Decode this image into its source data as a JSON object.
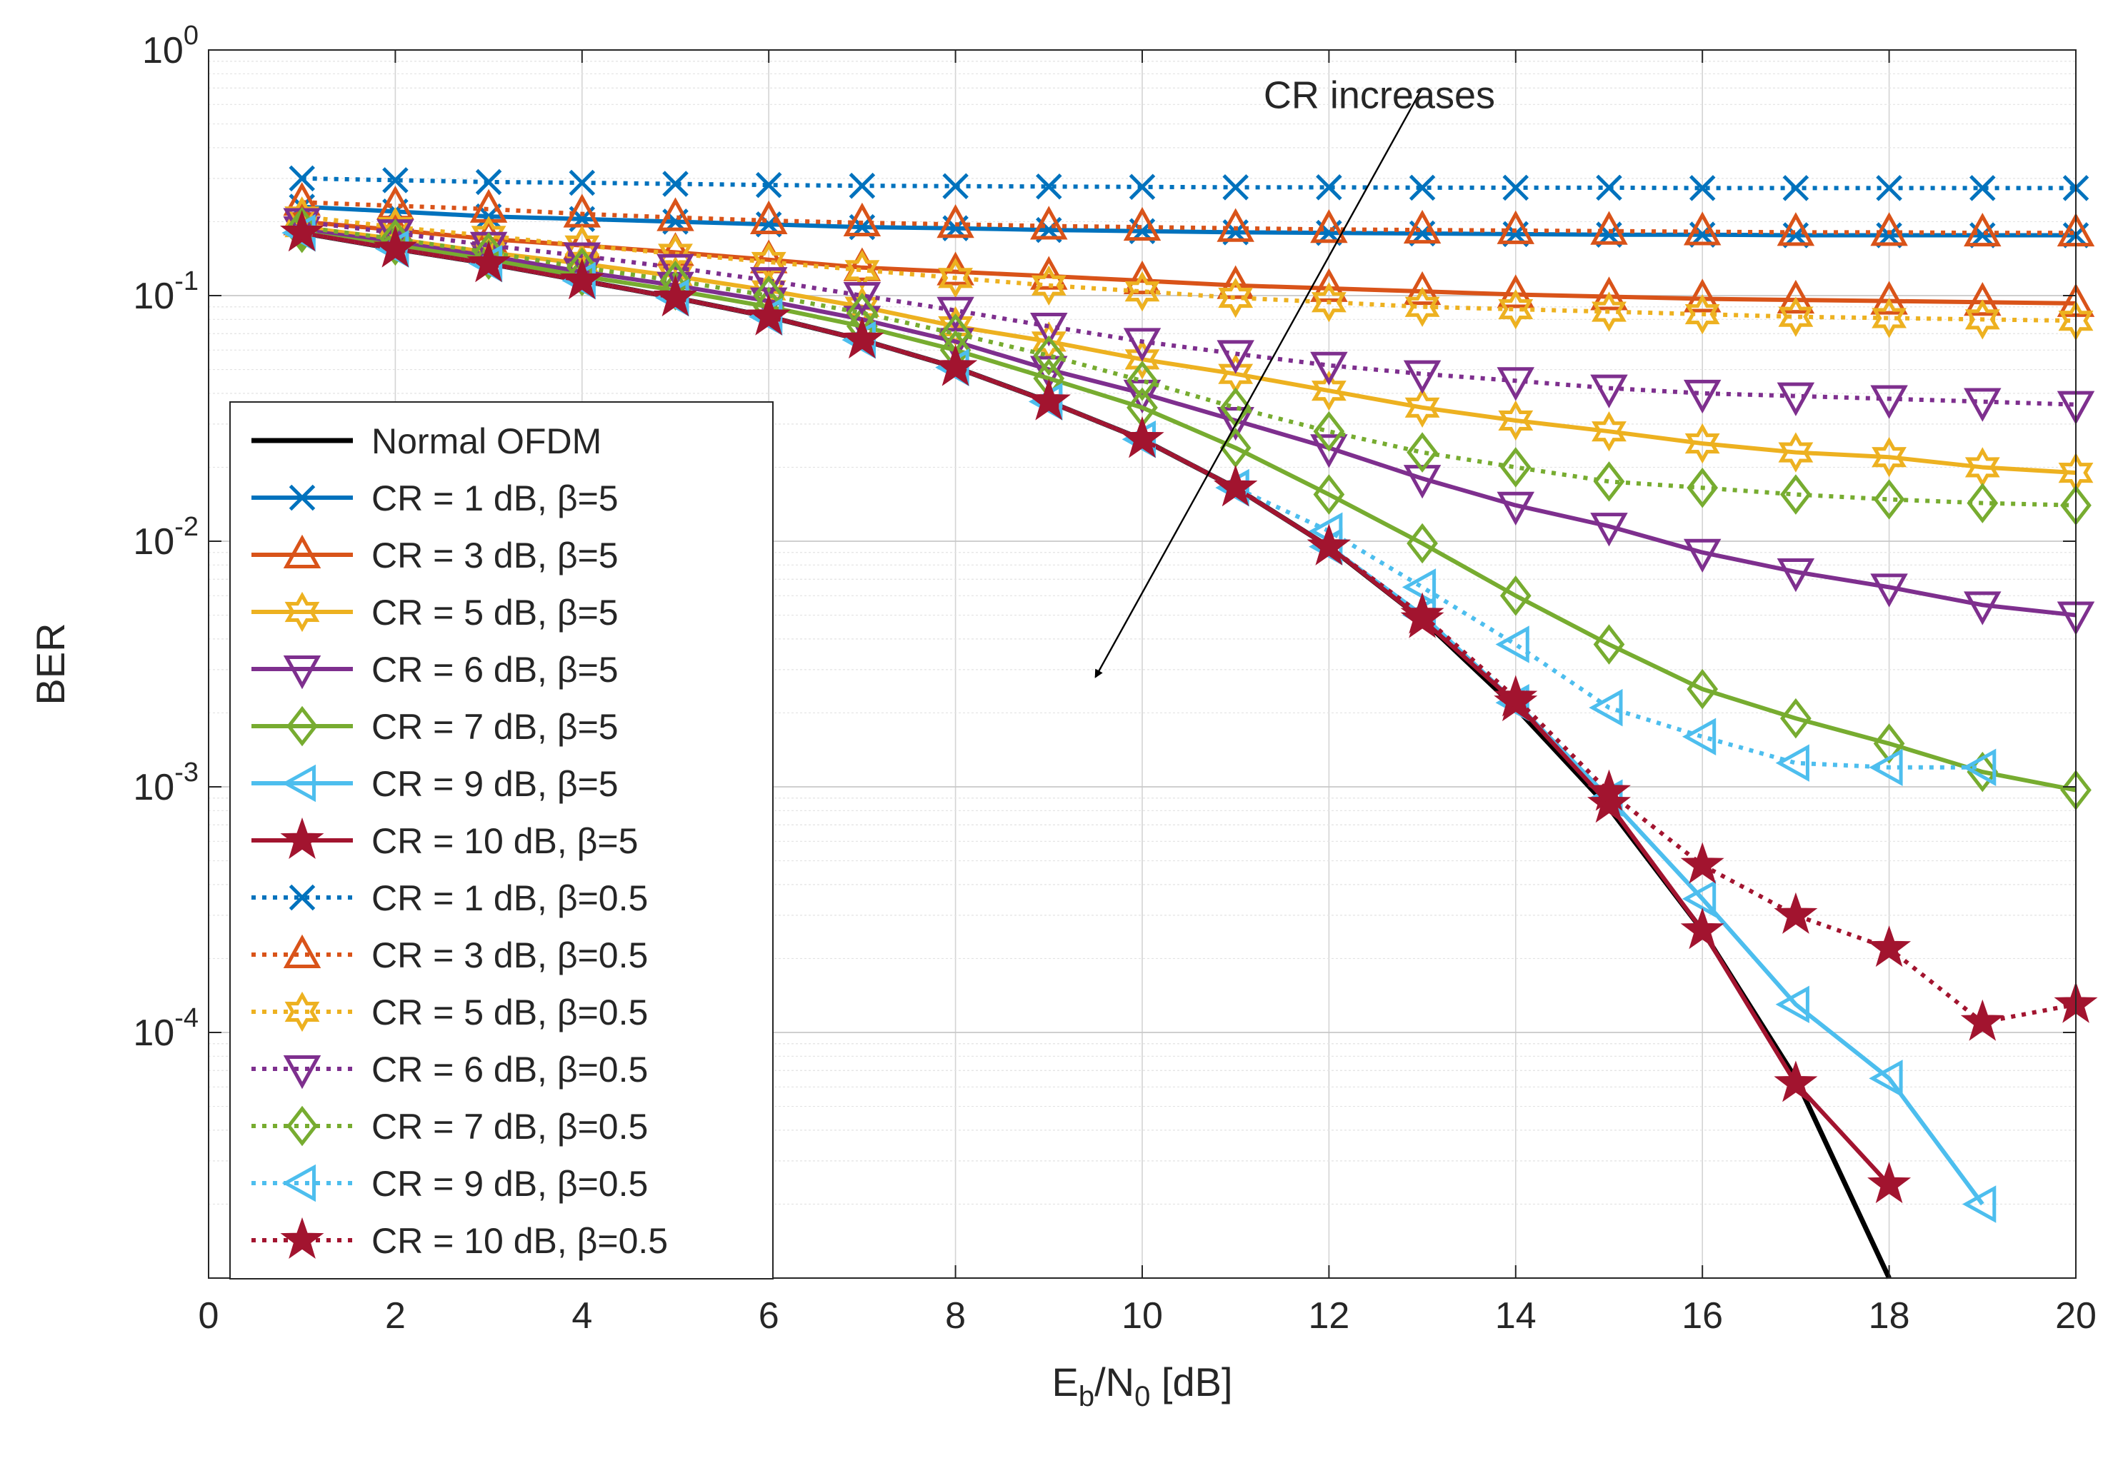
{
  "chart_data": {
    "type": "line",
    "title": "",
    "xlabel": "E_b/N_0 [dB]",
    "xlabel_parts": {
      "main1": "E",
      "sub1": "b",
      "main2": "/N",
      "sub2": "0",
      "tail": " [dB]"
    },
    "ylabel": "BER",
    "xlim": [
      0,
      20
    ],
    "ylim": [
      1e-05,
      1
    ],
    "yscale": "log",
    "grid": true,
    "legend_position": "lower-left",
    "x_ticks": [
      "0",
      "2",
      "4",
      "6",
      "8",
      "10",
      "12",
      "14",
      "16",
      "18",
      "20"
    ],
    "y_ticks": [
      {
        "base": "10",
        "exp": "0"
      },
      {
        "base": "10",
        "exp": "-1"
      },
      {
        "base": "10",
        "exp": "-2"
      },
      {
        "base": "10",
        "exp": "-3"
      },
      {
        "base": "10",
        "exp": "-4"
      }
    ],
    "annotation": {
      "text": "CR increases",
      "arrow_from": [
        13,
        0.7
      ],
      "arrow_to": [
        9.5,
        0.0028
      ]
    },
    "series": [
      {
        "name": "Normal OFDM",
        "color": "#000000",
        "line": "solid",
        "marker": "none",
        "x": [
          1,
          2,
          3,
          4,
          5,
          6,
          7,
          8,
          9,
          10,
          11,
          12,
          13,
          14,
          15,
          16,
          17,
          18
        ],
        "y": [
          0.18,
          0.155,
          0.135,
          0.115,
          0.098,
          0.082,
          0.066,
          0.051,
          0.037,
          0.026,
          0.0165,
          0.0095,
          0.0048,
          0.0021,
          0.00082,
          0.00026,
          6.5e-05,
          1e-05
        ]
      },
      {
        "name": "CR = 1 dB, β=5",
        "color": "#0072BD",
        "line": "solid",
        "marker": "x",
        "x": [
          1,
          2,
          3,
          4,
          5,
          6,
          7,
          8,
          9,
          10,
          11,
          12,
          13,
          14,
          15,
          16,
          17,
          18,
          19,
          20
        ],
        "y": [
          0.23,
          0.22,
          0.21,
          0.205,
          0.2,
          0.195,
          0.19,
          0.188,
          0.185,
          0.183,
          0.181,
          0.18,
          0.179,
          0.178,
          0.177,
          0.177,
          0.176,
          0.176,
          0.176,
          0.176
        ]
      },
      {
        "name": "CR = 3 dB, β=5",
        "color": "#D95319",
        "line": "solid",
        "marker": "triangle-up",
        "x": [
          1,
          2,
          3,
          4,
          5,
          6,
          7,
          8,
          9,
          10,
          11,
          12,
          13,
          14,
          15,
          16,
          17,
          18,
          19,
          20
        ],
        "y": [
          0.2,
          0.185,
          0.17,
          0.16,
          0.15,
          0.14,
          0.13,
          0.125,
          0.12,
          0.115,
          0.11,
          0.107,
          0.104,
          0.101,
          0.099,
          0.097,
          0.096,
          0.095,
          0.094,
          0.093
        ]
      },
      {
        "name": "CR = 5 dB, β=5",
        "color": "#EDB120",
        "line": "solid",
        "marker": "hexagram",
        "x": [
          1,
          2,
          3,
          4,
          5,
          6,
          7,
          8,
          9,
          10,
          11,
          12,
          13,
          14,
          15,
          16,
          17,
          18,
          19,
          20
        ],
        "y": [
          0.19,
          0.17,
          0.15,
          0.135,
          0.12,
          0.105,
          0.09,
          0.075,
          0.065,
          0.055,
          0.048,
          0.041,
          0.035,
          0.031,
          0.028,
          0.025,
          0.023,
          0.022,
          0.02,
          0.019
        ]
      },
      {
        "name": "CR = 6 dB, β=5",
        "color": "#7E2F8E",
        "line": "solid",
        "marker": "triangle-down",
        "x": [
          1,
          2,
          3,
          4,
          5,
          6,
          7,
          8,
          9,
          10,
          11,
          12,
          13,
          14,
          15,
          16,
          17,
          18,
          19,
          20
        ],
        "y": [
          0.185,
          0.165,
          0.145,
          0.125,
          0.11,
          0.095,
          0.08,
          0.065,
          0.05,
          0.04,
          0.031,
          0.024,
          0.018,
          0.014,
          0.0115,
          0.009,
          0.0075,
          0.0065,
          0.0055,
          0.005
        ]
      },
      {
        "name": "CR = 7 dB, β=5",
        "color": "#77AC30",
        "line": "solid",
        "marker": "diamond",
        "x": [
          1,
          2,
          3,
          4,
          5,
          6,
          7,
          8,
          9,
          10,
          11,
          12,
          13,
          14,
          15,
          16,
          17,
          18,
          19,
          20
        ],
        "y": [
          0.18,
          0.16,
          0.14,
          0.12,
          0.105,
          0.09,
          0.075,
          0.06,
          0.046,
          0.035,
          0.024,
          0.0155,
          0.0098,
          0.006,
          0.0038,
          0.0025,
          0.0019,
          0.0015,
          0.00115,
          0.00097
        ]
      },
      {
        "name": "CR = 9 dB, β=5",
        "color": "#4DBEEE",
        "line": "solid",
        "marker": "triangle-left",
        "x": [
          1,
          2,
          3,
          4,
          5,
          6,
          7,
          8,
          9,
          10,
          11,
          12,
          13,
          14,
          15,
          16,
          17,
          18,
          19
        ],
        "y": [
          0.18,
          0.155,
          0.135,
          0.115,
          0.098,
          0.082,
          0.066,
          0.051,
          0.037,
          0.026,
          0.0165,
          0.0095,
          0.005,
          0.0022,
          0.0009,
          0.00035,
          0.00013,
          6.5e-05,
          2e-05
        ]
      },
      {
        "name": "CR = 10 dB, β=5",
        "color": "#A2142F",
        "line": "solid",
        "marker": "pentagram",
        "x": [
          1,
          2,
          3,
          4,
          5,
          6,
          7,
          8,
          9,
          10,
          11,
          12,
          13,
          14,
          15,
          16,
          17,
          18
        ],
        "y": [
          0.18,
          0.155,
          0.135,
          0.115,
          0.098,
          0.082,
          0.066,
          0.051,
          0.037,
          0.026,
          0.0165,
          0.0095,
          0.0048,
          0.0022,
          0.00085,
          0.00026,
          6.2e-05,
          2.4e-05
        ]
      },
      {
        "name": "CR = 1 dB, β=0.5",
        "color": "#0072BD",
        "line": "dotted",
        "marker": "x",
        "x": [
          1,
          2,
          3,
          4,
          5,
          6,
          7,
          8,
          9,
          10,
          11,
          12,
          13,
          14,
          15,
          16,
          17,
          18,
          19,
          20
        ],
        "y": [
          0.3,
          0.295,
          0.29,
          0.288,
          0.285,
          0.282,
          0.28,
          0.279,
          0.278,
          0.277,
          0.276,
          0.276,
          0.275,
          0.275,
          0.275,
          0.274,
          0.274,
          0.274,
          0.274,
          0.274
        ]
      },
      {
        "name": "CR = 3 dB, β=0.5",
        "color": "#D95319",
        "line": "dotted",
        "marker": "triangle-up",
        "x": [
          1,
          2,
          3,
          4,
          5,
          6,
          7,
          8,
          9,
          10,
          11,
          12,
          13,
          14,
          15,
          16,
          17,
          18,
          19,
          20
        ],
        "y": [
          0.24,
          0.232,
          0.225,
          0.215,
          0.208,
          0.202,
          0.198,
          0.195,
          0.192,
          0.19,
          0.188,
          0.186,
          0.185,
          0.184,
          0.183,
          0.182,
          0.181,
          0.181,
          0.18,
          0.18
        ]
      },
      {
        "name": "CR = 5 dB, β=0.5",
        "color": "#EDB120",
        "line": "dotted",
        "marker": "hexagram",
        "x": [
          1,
          2,
          3,
          4,
          5,
          6,
          7,
          8,
          9,
          10,
          11,
          12,
          13,
          14,
          15,
          16,
          17,
          18,
          19,
          20
        ],
        "y": [
          0.21,
          0.19,
          0.175,
          0.16,
          0.148,
          0.137,
          0.127,
          0.118,
          0.11,
          0.104,
          0.098,
          0.094,
          0.09,
          0.088,
          0.086,
          0.084,
          0.082,
          0.081,
          0.08,
          0.079
        ]
      },
      {
        "name": "CR = 6 dB, β=0.5",
        "color": "#7E2F8E",
        "line": "dotted",
        "marker": "triangle-down",
        "x": [
          1,
          2,
          3,
          4,
          5,
          6,
          7,
          8,
          9,
          10,
          11,
          12,
          13,
          14,
          15,
          16,
          17,
          18,
          19,
          20
        ],
        "y": [
          0.2,
          0.18,
          0.16,
          0.145,
          0.13,
          0.115,
          0.1,
          0.087,
          0.075,
          0.065,
          0.058,
          0.052,
          0.048,
          0.045,
          0.042,
          0.04,
          0.039,
          0.038,
          0.037,
          0.036
        ]
      },
      {
        "name": "CR = 7 dB, β=0.5",
        "color": "#77AC30",
        "line": "dotted",
        "marker": "diamond",
        "x": [
          1,
          2,
          3,
          4,
          5,
          6,
          7,
          8,
          9,
          10,
          11,
          12,
          13,
          14,
          15,
          16,
          17,
          18,
          19,
          20
        ],
        "y": [
          0.19,
          0.17,
          0.15,
          0.13,
          0.115,
          0.1,
          0.085,
          0.07,
          0.057,
          0.045,
          0.035,
          0.028,
          0.023,
          0.02,
          0.0175,
          0.0165,
          0.0155,
          0.0148,
          0.0143,
          0.014
        ]
      },
      {
        "name": "CR = 9 dB, β=0.5",
        "color": "#4DBEEE",
        "line": "dotted",
        "marker": "triangle-left",
        "x": [
          1,
          2,
          3,
          4,
          5,
          6,
          7,
          8,
          9,
          10,
          11,
          12,
          13,
          14,
          15,
          16,
          17,
          18,
          19
        ],
        "y": [
          0.18,
          0.155,
          0.135,
          0.115,
          0.098,
          0.082,
          0.066,
          0.051,
          0.037,
          0.026,
          0.0165,
          0.011,
          0.0065,
          0.0038,
          0.0021,
          0.0016,
          0.00125,
          0.0012,
          0.0012
        ]
      },
      {
        "name": "CR = 10 dB, β=0.5",
        "color": "#A2142F",
        "line": "dotted",
        "marker": "pentagram",
        "x": [
          1,
          2,
          3,
          4,
          5,
          6,
          7,
          8,
          9,
          10,
          11,
          12,
          13,
          14,
          15,
          16,
          17,
          18,
          19,
          20
        ],
        "y": [
          0.18,
          0.155,
          0.135,
          0.115,
          0.098,
          0.082,
          0.066,
          0.051,
          0.037,
          0.026,
          0.0165,
          0.0095,
          0.005,
          0.0023,
          0.00095,
          0.00048,
          0.0003,
          0.00022,
          0.00011,
          0.00013
        ]
      }
    ]
  }
}
